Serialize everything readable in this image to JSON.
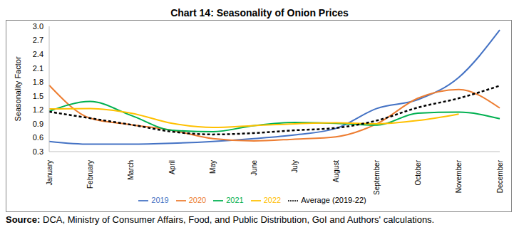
{
  "chart_data": {
    "type": "line",
    "title": "Chart 14: Seasonality of Onion Prices",
    "y_label": "Seasonality Factor",
    "source": "Source: DCA, Ministry of Consumer Affairs, Food, and Public Distribution, GoI and Authors' calculations.",
    "categories": [
      "January",
      "February",
      "March",
      "April",
      "May",
      "June",
      "July",
      "August",
      "September",
      "October",
      "November",
      "December"
    ],
    "series": [
      {
        "name": "2019",
        "color": "#4472c4",
        "line_style": "solid",
        "values": [
          0.52,
          0.46,
          0.46,
          0.48,
          0.52,
          0.58,
          0.66,
          0.8,
          1.23,
          1.42,
          1.9,
          2.92
        ]
      },
      {
        "name": "2020",
        "color": "#ed7d31",
        "line_style": "solid",
        "values": [
          1.73,
          1.02,
          0.88,
          0.76,
          0.58,
          0.53,
          0.57,
          0.62,
          0.9,
          1.45,
          1.64,
          1.24
        ]
      },
      {
        "name": "2021",
        "color": "#00b050",
        "line_style": "solid",
        "values": [
          1.17,
          1.38,
          1.08,
          0.76,
          0.73,
          0.86,
          0.93,
          0.91,
          0.87,
          1.13,
          1.15,
          1.01
        ]
      },
      {
        "name": "2022",
        "color": "#ffc000",
        "line_style": "solid",
        "values": [
          1.22,
          1.23,
          1.13,
          0.91,
          0.82,
          0.86,
          0.9,
          0.92,
          0.9,
          0.97,
          1.11,
          null
        ]
      },
      {
        "name": "Average (2019-22)",
        "color": "#000000",
        "line_style": "dashed",
        "values": [
          1.16,
          1.02,
          0.88,
          0.73,
          0.67,
          0.7,
          0.76,
          0.81,
          0.97,
          1.25,
          1.45,
          1.72
        ]
      }
    ],
    "ylim": [
      0.3,
      3.0
    ],
    "yticks": [
      0.3,
      0.6,
      0.9,
      1.2,
      1.5,
      1.8,
      2.1,
      2.4,
      2.7,
      {
        "value": 3.0,
        "label": "3.0"
      }
    ],
    "grid": false,
    "legend": "bottom"
  }
}
